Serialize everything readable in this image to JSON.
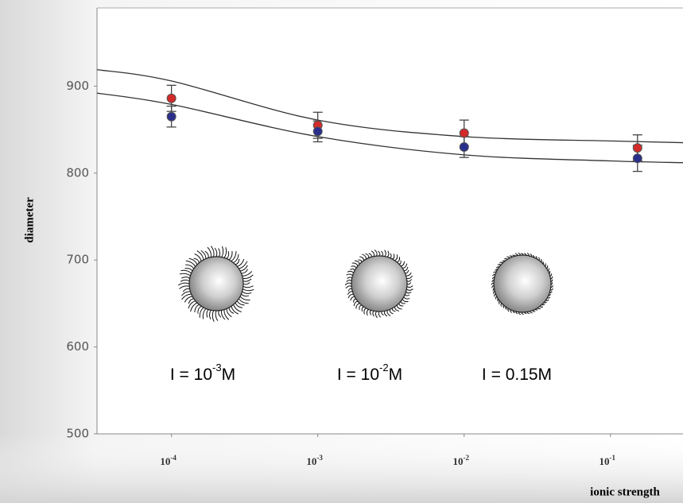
{
  "chart_data": {
    "type": "scatter",
    "x_label": "ionic strength",
    "y_label": "diameter",
    "xlim": [
      3.1e-05,
      0.313
    ],
    "ylim": [
      500,
      990
    ],
    "log_x": true,
    "yticks": [
      500,
      600,
      700,
      800,
      900
    ],
    "xticks": [
      {
        "value": 0.0001,
        "label": "10",
        "sup": "-4"
      },
      {
        "value": 0.001,
        "label": "10",
        "sup": "-3"
      },
      {
        "value": 0.01,
        "label": "10",
        "sup": "-2"
      },
      {
        "value": 0.1,
        "label": "10",
        "sup": "-1"
      }
    ],
    "series": [
      {
        "color": "#d42a2a",
        "x": [
          0.0001,
          0.001,
          0.01,
          0.153
        ],
        "values": [
          886,
          855,
          846,
          829
        ],
        "errors": [
          15,
          15,
          15,
          15
        ]
      },
      {
        "color": "#2a2f8c",
        "x": [
          0.0001,
          0.001,
          0.01,
          0.153
        ],
        "values": [
          865,
          848,
          830,
          817
        ],
        "errors": [
          12,
          12,
          12,
          15
        ]
      }
    ],
    "curves": [
      {
        "color": "#333333",
        "x": [
          3.1e-05,
          0.0001,
          0.001,
          0.01,
          0.1,
          0.313
        ],
        "values": [
          919,
          906,
          861,
          842,
          837,
          835
        ]
      },
      {
        "color": "#333333",
        "x": [
          3.1e-05,
          0.0001,
          0.001,
          0.01,
          0.1,
          0.313
        ],
        "values": [
          892,
          879,
          842,
          821,
          814,
          812
        ]
      }
    ],
    "annotations": [
      {
        "base": "I = 10",
        "sup": "-3",
        "unit": "M"
      },
      {
        "base": "I = 10",
        "sup": "-2",
        "unit": "M"
      },
      {
        "base": "I = 0.15M"
      }
    ]
  }
}
